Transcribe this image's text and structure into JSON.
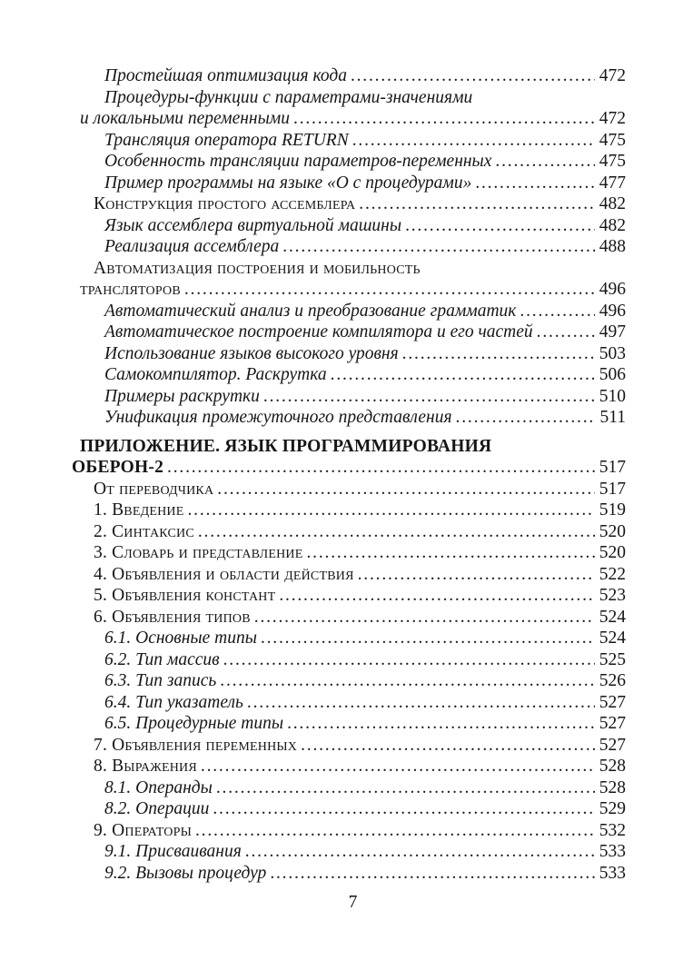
{
  "toc": {
    "rows": [
      {
        "text": "Простейшая оптимизация кода",
        "style": "italic",
        "indent": "ital",
        "page": "472"
      },
      {
        "text": "Процедуры-функции с параметрами-значениями",
        "style": "italic",
        "indent": "ital",
        "page": ""
      },
      {
        "text": "и локальными переменными",
        "style": "italic",
        "indent": "cont",
        "page": "472"
      },
      {
        "text": "Трансляция оператора RETURN",
        "style": "italic",
        "indent": "ital",
        "page": "475"
      },
      {
        "text": "Особенность трансляции параметров-переменных",
        "style": "italic",
        "indent": "ital",
        "page": "475"
      },
      {
        "text": "Пример программы на языке «О с процедурами»",
        "style": "italic",
        "indent": "ital",
        "page": "477"
      },
      {
        "text": "Конструкция простого ассемблера",
        "style": "caps",
        "indent": "caps",
        "page": "482"
      },
      {
        "text": "Язык ассемблера виртуальной машины",
        "style": "italic",
        "indent": "ital",
        "page": "482"
      },
      {
        "text": "Реализация ассемблера",
        "style": "italic",
        "indent": "ital",
        "page": "488"
      },
      {
        "text": "Автоматизация построения и мобильность",
        "style": "caps",
        "indent": "caps",
        "page": ""
      },
      {
        "text": "трансляторов",
        "style": "caps",
        "indent": "cont",
        "page": "496"
      },
      {
        "text": "Автоматический анализ и преобразование грамматик",
        "style": "italic",
        "indent": "ital",
        "page": "496"
      },
      {
        "text": "Автоматическое построение компилятора и его частей",
        "style": "italic",
        "indent": "ital",
        "page": "497"
      },
      {
        "text": "Использование языков высокого уровня",
        "style": "italic",
        "indent": "ital",
        "page": "503"
      },
      {
        "text": "Самокомпилятор. Раскрутка",
        "style": "italic",
        "indent": "ital",
        "page": "506"
      },
      {
        "text": "Примеры раскрутки",
        "style": "italic",
        "indent": "ital",
        "page": "510"
      },
      {
        "text": "Унификация промежуточного представления",
        "style": "italic",
        "indent": "ital",
        "page": "511"
      },
      {
        "text": "ПРИЛОЖЕНИЕ. ЯЗЫК ПРОГРАММИРОВАНИЯ",
        "style": "bold",
        "indent": "cont",
        "page": "",
        "gap_before": true
      },
      {
        "text": "ОБЕРОН-2",
        "style": "bold",
        "indent": "neg",
        "page": "517"
      },
      {
        "text": "От переводчика",
        "style": "caps",
        "indent": "caps",
        "page": "517"
      },
      {
        "text": "1. Введение",
        "style": "caps",
        "indent": "caps",
        "page": "519"
      },
      {
        "text": "2. Синтаксис",
        "style": "caps",
        "indent": "caps",
        "page": "520"
      },
      {
        "text": "3. Словарь и представление",
        "style": "caps",
        "indent": "caps",
        "page": "520"
      },
      {
        "text": "4. Объявления и области действия",
        "style": "caps",
        "indent": "caps",
        "page": "522"
      },
      {
        "text": "5. Объявления констант",
        "style": "caps",
        "indent": "caps",
        "page": "523"
      },
      {
        "text": "6. Объявления типов",
        "style": "caps",
        "indent": "caps",
        "page": "524"
      },
      {
        "text": "6.1. Основные типы",
        "style": "italic",
        "indent": "ital",
        "page": "524"
      },
      {
        "text": "6.2. Тип массив",
        "style": "italic",
        "indent": "ital",
        "page": "525"
      },
      {
        "text": "6.3. Тип запись",
        "style": "italic",
        "indent": "ital",
        "page": "526"
      },
      {
        "text": "6.4. Тип указатель",
        "style": "italic",
        "indent": "ital",
        "page": "527"
      },
      {
        "text": "6.5. Процедурные типы",
        "style": "italic",
        "indent": "ital",
        "page": "527"
      },
      {
        "text": "7. Объявления переменных",
        "style": "caps",
        "indent": "caps",
        "page": "527"
      },
      {
        "text": "8. Выражения",
        "style": "caps",
        "indent": "caps",
        "page": "528"
      },
      {
        "text": "8.1. Операнды",
        "style": "italic",
        "indent": "ital",
        "page": "528"
      },
      {
        "text": "8.2. Операции",
        "style": "italic",
        "indent": "ital",
        "page": "529"
      },
      {
        "text": "9. Операторы",
        "style": "caps",
        "indent": "caps",
        "page": "532"
      },
      {
        "text": "9.1. Присваивания",
        "style": "italic",
        "indent": "ital",
        "page": "533"
      },
      {
        "text": "9.2. Вызовы процедур",
        "style": "italic",
        "indent": "ital",
        "page": "533"
      }
    ]
  },
  "footer": {
    "page_number": "7"
  }
}
